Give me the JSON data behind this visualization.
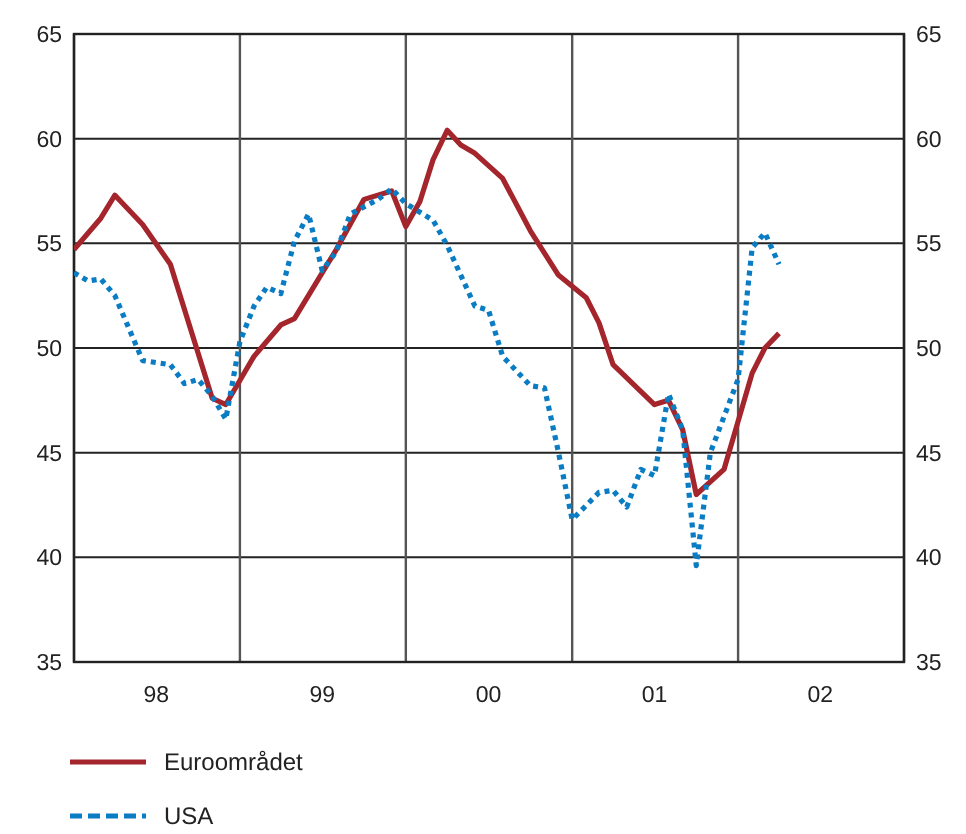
{
  "chart_data": {
    "type": "line",
    "x": [
      "1998-01",
      "1998-03",
      "1998-04",
      "1998-06",
      "1998-08",
      "1998-11",
      "1998-12",
      "1999-02",
      "1999-04",
      "1999-05",
      "1999-08",
      "1999-10",
      "1999-12",
      "2000-01",
      "2000-02",
      "2000-03",
      "2000-04",
      "2000-05",
      "2000-06",
      "2000-08",
      "2000-10",
      "2000-12",
      "2001-02",
      "2001-03",
      "2001-04",
      "2001-07",
      "2001-08",
      "2001-09",
      "2001-10",
      "2001-12",
      "2002-02",
      "2002-03",
      "2002-04"
    ],
    "series": [
      {
        "name": "Euroområdet",
        "color": "#a4262c",
        "line_style": "solid",
        "values": [
          54.7,
          56.2,
          57.3,
          55.9,
          54.0,
          47.6,
          47.3,
          49.6,
          51.1,
          51.4,
          54.7,
          57.1,
          57.5,
          55.8,
          57.0,
          59.0,
          60.4,
          59.7,
          59.3,
          58.1,
          55.6,
          53.5,
          52.4,
          51.2,
          49.2,
          47.3,
          47.5,
          46.1,
          43.0,
          44.2,
          48.8,
          50.0,
          50.7
        ]
      },
      {
        "name": "USA",
        "color": "#0a7cc4",
        "line_style": "dotted",
        "x": [
          "1998-01",
          "1998-02",
          "1998-03",
          "1998-04",
          "1998-06",
          "1998-08",
          "1998-09",
          "1998-10",
          "1998-11",
          "1998-12",
          "1999-01",
          "1999-02",
          "1999-03",
          "1999-04",
          "1999-05",
          "1999-06",
          "1999-07",
          "1999-08",
          "1999-09",
          "1999-11",
          "1999-12",
          "2000-01",
          "2000-03",
          "2000-04",
          "2000-06",
          "2000-07",
          "2000-08",
          "2000-10",
          "2000-11",
          "2000-12",
          "2001-01",
          "2001-03",
          "2001-04",
          "2001-05",
          "2001-06",
          "2001-07",
          "2001-08",
          "2001-09",
          "2001-10",
          "2001-11",
          "2002-01",
          "2002-02",
          "2002-03",
          "2002-04"
        ],
        "values": [
          53.6,
          53.2,
          53.3,
          52.5,
          49.4,
          49.2,
          48.3,
          48.5,
          47.7,
          46.6,
          50.3,
          52.0,
          52.9,
          52.6,
          55.1,
          56.4,
          53.7,
          54.6,
          56.4,
          57.1,
          57.6,
          56.9,
          56.1,
          54.9,
          52.0,
          51.8,
          49.6,
          48.2,
          48.1,
          45.1,
          41.8,
          43.1,
          43.2,
          42.4,
          44.2,
          43.9,
          47.8,
          46.1,
          39.6,
          45.0,
          48.5,
          54.8,
          55.5,
          54.0
        ]
      }
    ],
    "xlim": [
      "1998-01",
      "2003-01"
    ],
    "xticks": [
      {
        "value": "1998-01",
        "label": null
      },
      {
        "value": "1998-07",
        "label": "98"
      },
      {
        "value": "1999-01",
        "label": null
      },
      {
        "value": "1999-07",
        "label": "99"
      },
      {
        "value": "2000-01",
        "label": null
      },
      {
        "value": "2000-07",
        "label": "00"
      },
      {
        "value": "2001-01",
        "label": null
      },
      {
        "value": "2001-07",
        "label": "01"
      },
      {
        "value": "2002-01",
        "label": null
      },
      {
        "value": "2002-07",
        "label": "02"
      },
      {
        "value": "2003-01",
        "label": null
      }
    ],
    "ylim": [
      35,
      65
    ],
    "yticks": [
      35,
      40,
      45,
      50,
      55,
      60,
      65
    ],
    "y2lim": [
      35,
      65
    ],
    "y2ticks": [
      35,
      40,
      45,
      50,
      55,
      60,
      65
    ],
    "grid": true,
    "legend": "bottom"
  }
}
